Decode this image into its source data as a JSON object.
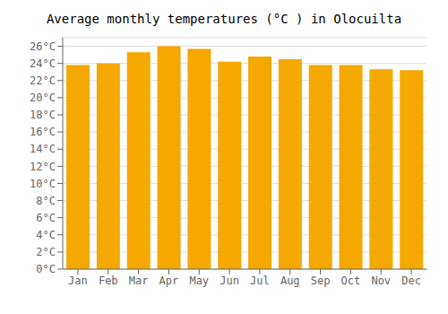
{
  "chart_data": {
    "type": "bar",
    "title": "Average monthly temperatures (°C ) in Olocuilta",
    "categories": [
      "Jan",
      "Feb",
      "Mar",
      "Apr",
      "May",
      "Jun",
      "Jul",
      "Aug",
      "Sep",
      "Oct",
      "Nov",
      "Dec"
    ],
    "values": [
      23.8,
      24.0,
      25.3,
      26.0,
      25.7,
      24.2,
      24.8,
      24.5,
      23.8,
      23.8,
      23.3,
      23.2
    ],
    "color": "#F5A800",
    "ylim": [
      0,
      27
    ],
    "yticks": [
      {
        "value": 0,
        "label": "0°C"
      },
      {
        "value": 2,
        "label": "2°C"
      },
      {
        "value": 4,
        "label": "4°C"
      },
      {
        "value": 6,
        "label": "6°C"
      },
      {
        "value": 8,
        "label": "8°C"
      },
      {
        "value": 10,
        "label": "10°C"
      },
      {
        "value": 12,
        "label": "12°C"
      },
      {
        "value": 14,
        "label": "14°C"
      },
      {
        "value": 16,
        "label": "16°C"
      },
      {
        "value": 18,
        "label": "18°C"
      },
      {
        "value": 20,
        "label": "20°C"
      },
      {
        "value": 22,
        "label": "22°C"
      },
      {
        "value": 24,
        "label": "24°C"
      },
      {
        "value": 26,
        "label": "26°C"
      }
    ],
    "grid": true
  }
}
